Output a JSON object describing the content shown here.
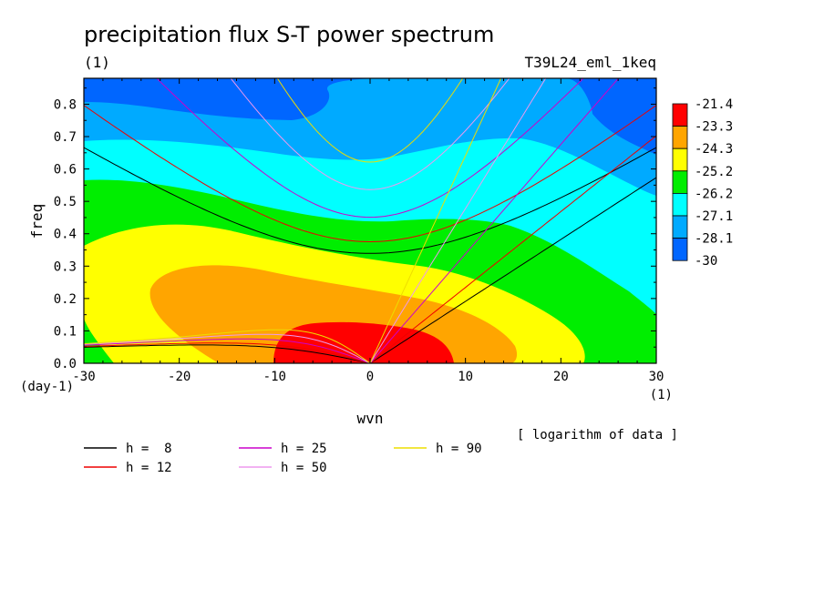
{
  "chart_data": {
    "type": "heatmap",
    "title": "precipitation flux S-T power spectrum",
    "subtitle_left": "(1)",
    "subtitle_right": "T39L24_eml_1keq",
    "xlabel": "wvn",
    "ylabel": "freq",
    "x_unit": "(1)",
    "y_unit": "(day-1)",
    "xlim": [
      -30,
      30
    ],
    "ylim": [
      0,
      0.88
    ],
    "x_ticks": [
      "-30",
      "-20",
      "-10",
      "0",
      "10",
      "20",
      "30"
    ],
    "x_tick_values": [
      -30,
      -20,
      -10,
      0,
      10,
      20,
      30
    ],
    "y_ticks": [
      "0.0",
      "0.1",
      "0.2",
      "0.3",
      "0.4",
      "0.5",
      "0.6",
      "0.7",
      "0.8"
    ],
    "y_tick_values": [
      0,
      0.1,
      0.2,
      0.3,
      0.4,
      0.5,
      0.6,
      0.7,
      0.8
    ],
    "note": "[ logarithm of data ]",
    "colorbar": {
      "labels": [
        "-21.4",
        "-23.3",
        "-24.3",
        "-25.2",
        "-26.2",
        "-27.1",
        "-28.1",
        "-30"
      ],
      "colors": [
        "#ff0000",
        "#ffa500",
        "#ffff00",
        "#00ee00",
        "#00ffff",
        "#00aaff",
        "#0066ff"
      ]
    },
    "dispersion_curves": [
      {
        "label": "h =  8",
        "h": 8,
        "color": "#000000"
      },
      {
        "label": "h = 12",
        "h": 12,
        "color": "#ee0000"
      },
      {
        "label": "h = 25",
        "h": 25,
        "color": "#cc00cc"
      },
      {
        "label": "h = 50",
        "h": 50,
        "color": "#ee99ee"
      },
      {
        "label": "h = 90",
        "h": 90,
        "color": "#eedd00"
      }
    ]
  }
}
